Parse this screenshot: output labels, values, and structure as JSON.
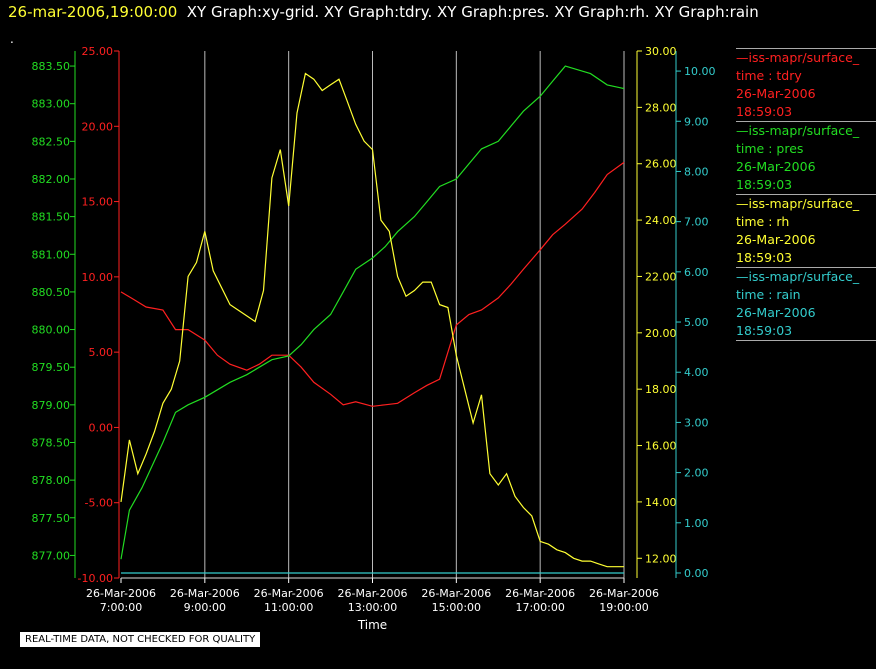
{
  "header": {
    "timestamp": "26-mar-2006,19:00:00",
    "tabs": "XY Graph:xy-grid.  XY Graph:tdry.  XY Graph:pres.  XY Graph:rh.  XY Graph:rain"
  },
  "marker": ".",
  "footer_note": "REAL-TIME DATA, NOT CHECKED FOR QUALITY",
  "colors": {
    "tdry": "#ff2020",
    "pres": "#22dd22",
    "rh": "#ffff33",
    "rain": "#33cccc",
    "grid": "#bbbbbb"
  },
  "legend": [
    {
      "name": "—iss-mapr/surface_",
      "var": "time : tdry",
      "date": "26-Mar-2006",
      "time": "18:59:03",
      "color": "#ff2020"
    },
    {
      "name": "—iss-mapr/surface_",
      "var": "time : pres",
      "date": "26-Mar-2006",
      "time": "18:59:03",
      "color": "#22dd22"
    },
    {
      "name": "—iss-mapr/surface_",
      "var": "time : rh",
      "date": "26-Mar-2006",
      "time": "18:59:03",
      "color": "#ffff33"
    },
    {
      "name": "—iss-mapr/surface_",
      "var": "time : rain",
      "date": "26-Mar-2006",
      "time": "18:59:03",
      "color": "#33cccc"
    }
  ],
  "chart_data": {
    "type": "line",
    "xlabel": "Time",
    "x_ticks": [
      {
        "date": "26-Mar-2006",
        "time": "7:00:00",
        "h": 7
      },
      {
        "date": "26-Mar-2006",
        "time": "9:00:00",
        "h": 9
      },
      {
        "date": "26-Mar-2006",
        "time": "11:00:00",
        "h": 11
      },
      {
        "date": "26-Mar-2006",
        "time": "13:00:00",
        "h": 13
      },
      {
        "date": "26-Mar-2006",
        "time": "15:00:00",
        "h": 15
      },
      {
        "date": "26-Mar-2006",
        "time": "17:00:00",
        "h": 17
      },
      {
        "date": "26-Mar-2006",
        "time": "19:00:00",
        "h": 19
      }
    ],
    "xlim": [
      7,
      19
    ],
    "grid": "vertical",
    "axes": {
      "tdry": {
        "range": [
          -10,
          25
        ],
        "ticks": [
          "-10.00",
          "-5.00",
          "0.00",
          "5.00",
          "10.00",
          "15.00",
          "20.00",
          "25.00"
        ],
        "color": "#ff2020"
      },
      "pres": {
        "range": [
          876.7,
          883.7
        ],
        "ticks": [
          "877.00",
          "877.50",
          "878.00",
          "878.50",
          "879.00",
          "879.50",
          "880.00",
          "880.50",
          "881.00",
          "881.50",
          "882.00",
          "882.50",
          "883.00",
          "883.50"
        ],
        "color": "#22dd22"
      },
      "rh": {
        "range": [
          11.3,
          30.0
        ],
        "ticks": [
          "12.00",
          "14.00",
          "16.00",
          "18.00",
          "20.00",
          "22.00",
          "24.00",
          "26.00",
          "28.00",
          "30.00"
        ],
        "color": "#ffff33"
      },
      "rain": {
        "range": [
          -0.1,
          10.4
        ],
        "ticks": [
          "0.00",
          "1.00",
          "2.00",
          "3.00",
          "4.00",
          "5.00",
          "6.00",
          "7.00",
          "8.00",
          "9.00",
          "10.00"
        ],
        "color": "#33cccc"
      }
    },
    "series": [
      {
        "name": "tdry",
        "color": "#ff2020",
        "x": [
          7.0,
          7.3,
          7.6,
          8.0,
          8.3,
          8.6,
          9.0,
          9.3,
          9.6,
          10.0,
          10.3,
          10.6,
          11.0,
          11.3,
          11.6,
          12.0,
          12.3,
          12.6,
          13.0,
          13.3,
          13.6,
          14.0,
          14.3,
          14.6,
          15.0,
          15.3,
          15.6,
          16.0,
          16.3,
          16.6,
          17.0,
          17.3,
          17.6,
          18.0,
          18.3,
          18.6,
          19.0
        ],
        "values": [
          9.0,
          8.5,
          8.0,
          7.8,
          6.5,
          6.5,
          5.8,
          4.8,
          4.2,
          3.8,
          4.2,
          4.8,
          4.8,
          4.0,
          3.0,
          2.2,
          1.5,
          1.7,
          1.4,
          1.5,
          1.6,
          2.3,
          2.8,
          3.2,
          6.8,
          7.5,
          7.8,
          8.6,
          9.5,
          10.5,
          11.8,
          12.8,
          13.5,
          14.5,
          15.6,
          16.8,
          17.6
        ]
      },
      {
        "name": "pres",
        "color": "#22dd22",
        "x": [
          7.0,
          7.2,
          7.5,
          8.0,
          8.3,
          8.6,
          9.0,
          9.3,
          9.6,
          10.0,
          10.3,
          10.6,
          11.0,
          11.3,
          11.6,
          12.0,
          12.3,
          12.6,
          13.0,
          13.3,
          13.6,
          14.0,
          14.3,
          14.6,
          15.0,
          15.3,
          15.6,
          16.0,
          16.3,
          16.6,
          17.0,
          17.3,
          17.6,
          17.9,
          18.2,
          18.6,
          19.0
        ],
        "values": [
          876.95,
          877.6,
          877.9,
          878.5,
          878.9,
          879.0,
          879.1,
          879.2,
          879.3,
          879.4,
          879.5,
          879.6,
          879.65,
          879.8,
          880.0,
          880.2,
          880.5,
          880.8,
          880.95,
          881.1,
          881.3,
          881.5,
          881.7,
          881.9,
          882.0,
          882.2,
          882.4,
          882.5,
          882.7,
          882.9,
          883.1,
          883.3,
          883.5,
          883.45,
          883.4,
          883.25,
          883.2
        ]
      },
      {
        "name": "rh",
        "color": "#ffff33",
        "x": [
          7.0,
          7.2,
          7.4,
          7.6,
          7.8,
          8.0,
          8.2,
          8.4,
          8.6,
          8.8,
          9.0,
          9.2,
          9.4,
          9.6,
          9.8,
          10.0,
          10.2,
          10.4,
          10.6,
          10.8,
          11.0,
          11.2,
          11.4,
          11.6,
          11.8,
          12.0,
          12.2,
          12.4,
          12.6,
          12.8,
          13.0,
          13.2,
          13.4,
          13.6,
          13.8,
          14.0,
          14.2,
          14.4,
          14.6,
          14.8,
          15.0,
          15.2,
          15.4,
          15.6,
          15.8,
          16.0,
          16.2,
          16.4,
          16.6,
          16.8,
          17.0,
          17.2,
          17.4,
          17.6,
          17.8,
          18.0,
          18.2,
          18.4,
          18.6,
          18.8,
          19.0
        ],
        "values": [
          14.0,
          16.2,
          15.0,
          15.7,
          16.5,
          17.5,
          18.0,
          19.0,
          22.0,
          22.5,
          23.6,
          22.2,
          21.6,
          21.0,
          20.8,
          20.6,
          20.4,
          21.5,
          25.5,
          26.5,
          24.5,
          27.8,
          29.2,
          29.0,
          28.6,
          28.8,
          29.0,
          28.2,
          27.4,
          26.8,
          26.5,
          24.0,
          23.6,
          22.0,
          21.3,
          21.5,
          21.8,
          21.8,
          21.0,
          20.9,
          19.2,
          18.0,
          16.8,
          17.8,
          15.0,
          14.6,
          15.0,
          14.2,
          13.8,
          13.5,
          12.6,
          12.5,
          12.3,
          12.2,
          12.0,
          11.9,
          11.9,
          11.8,
          11.7,
          11.7,
          11.7
        ]
      },
      {
        "name": "rain",
        "color": "#33cccc",
        "x": [
          7.0,
          19.0
        ],
        "values": [
          0.0,
          0.0
        ]
      }
    ]
  }
}
